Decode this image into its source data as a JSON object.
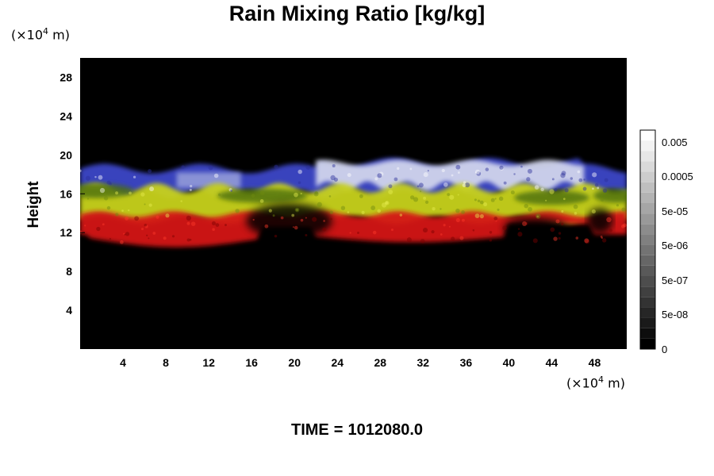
{
  "chart_data": {
    "type": "heatmap",
    "title": "Rain Mixing Ratio [kg/kg]",
    "ylabel": "Height",
    "x_unit_prefix": "(×10",
    "x_unit_exp": "4",
    "x_unit_suffix": " m)",
    "y_unit_prefix": "(×10",
    "y_unit_exp": "4",
    "y_unit_suffix": " m)",
    "x_ticks": [
      "4",
      "8",
      "12",
      "16",
      "20",
      "24",
      "28",
      "32",
      "36",
      "40",
      "44",
      "48"
    ],
    "y_ticks": [
      "4",
      "8",
      "12",
      "16",
      "20",
      "24",
      "28"
    ],
    "xlim": [
      0,
      51
    ],
    "ylim": [
      0,
      30
    ],
    "colorbar": {
      "labels": [
        "0.005",
        "0.0005",
        "5e-05",
        "5e-06",
        "5e-07",
        "5e-08",
        "0"
      ],
      "levels": 21,
      "colors_bottom_to_top": [
        "#000000",
        "#ffffff"
      ]
    },
    "bands": [
      {
        "name_color": "#d41414",
        "y_range": [
          10.5,
          14
        ]
      },
      {
        "name_color": "#c8d21e",
        "y_range": [
          13,
          17
        ]
      },
      {
        "name_color": "#3c46c8",
        "y_range": [
          16,
          19.5
        ]
      },
      {
        "name_color": "#d0d4ec",
        "y_range": [
          16,
          19
        ]
      }
    ]
  },
  "footer": {
    "time_label": "TIME",
    "equals": "=",
    "time_value": "1012080.0"
  }
}
